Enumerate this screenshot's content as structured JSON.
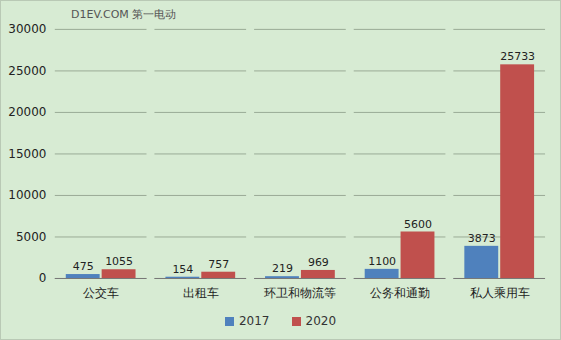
{
  "chart_data": {
    "type": "bar",
    "annotations": [
      "D1EV.COM 第一电动"
    ],
    "categories": [
      "公交车",
      "出租车",
      "环卫和物流等",
      "公务和通勤",
      "私人乘用车"
    ],
    "series": [
      {
        "name": "2017",
        "color": "#4f81bd",
        "values": [
          475,
          154,
          219,
          1100,
          3873
        ]
      },
      {
        "name": "2020",
        "color": "#c0504d",
        "values": [
          1055,
          757,
          969,
          5600,
          25733
        ]
      }
    ],
    "ylim": [
      0,
      30000
    ],
    "yticks": [
      0,
      5000,
      10000,
      15000,
      20000,
      25000,
      30000
    ],
    "grid": true,
    "data_labels": true,
    "legend": "bottom"
  }
}
